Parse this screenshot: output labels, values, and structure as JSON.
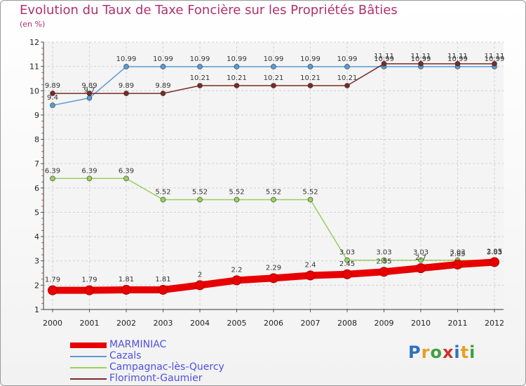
{
  "title": "Evolution du Taux de Taxe Foncière sur les Propriétés Bâties",
  "unit": "(en %)",
  "logo": {
    "text": "Proxiti",
    "colors": [
      "#3070c0",
      "#e8a020",
      "#40a040",
      "#d03030",
      "#3070c0",
      "#e8a020",
      "#40a040"
    ]
  },
  "chart_data": {
    "type": "line",
    "title": "Evolution du Taux de Taxe Foncière sur les Propriétés Bâties",
    "ylabel": "(en %)",
    "xlabel": "",
    "ylim": [
      1,
      12
    ],
    "y_ticks": [
      1,
      2,
      3,
      4,
      5,
      6,
      7,
      8,
      9,
      10,
      11,
      12
    ],
    "categories": [
      "2000",
      "2001",
      "2002",
      "2003",
      "2004",
      "2005",
      "2006",
      "2007",
      "2008",
      "2009",
      "2010",
      "2011",
      "2012"
    ],
    "series": [
      {
        "name": "MARMINIAC",
        "color": "#e80000",
        "values": [
          1.79,
          1.79,
          1.81,
          1.81,
          2,
          2.2,
          2.29,
          2.4,
          2.45,
          2.55,
          2.7,
          2.85,
          2.95
        ],
        "labels": [
          "1.79",
          "1.79",
          "1.81",
          "1.81",
          "2",
          "2.2",
          "2.29",
          "2.4",
          "2.45",
          "2.55",
          "2.7",
          "2.85",
          "2.95"
        ]
      },
      {
        "name": "Cazals",
        "color": "#5a9bd4",
        "values": [
          9.4,
          9.7,
          10.99,
          10.99,
          10.99,
          10.99,
          10.99,
          10.99,
          10.99,
          10.99,
          10.99,
          10.99,
          10.99
        ],
        "labels": [
          "9.4",
          "9.7",
          "10.99",
          "10.99",
          "10.99",
          "10.99",
          "10.99",
          "10.99",
          "10.99",
          "10.99",
          "10.99",
          "10.99",
          "10.99"
        ]
      },
      {
        "name": "Campagnac-lès-Quercy",
        "color": "#99d060",
        "values": [
          6.39,
          6.39,
          6.39,
          5.52,
          5.52,
          5.52,
          5.52,
          5.52,
          3.03,
          3.03,
          3.03,
          3.03,
          3.03
        ],
        "labels": [
          "6.39",
          "6.39",
          "6.39",
          "5.52",
          "5.52",
          "5.52",
          "5.52",
          "5.52",
          "3.03",
          "3.03",
          "3.03",
          "3.03",
          "3.03"
        ]
      },
      {
        "name": "Florimont-Gaumier",
        "color": "#7a2a2a",
        "values": [
          9.89,
          9.89,
          9.89,
          9.89,
          10.21,
          10.21,
          10.21,
          10.21,
          10.21,
          11.11,
          11.11,
          11.11,
          11.11
        ],
        "labels": [
          "9.89",
          "9.89",
          "9.89",
          "9.89",
          "10.21",
          "10.21",
          "10.21",
          "10.21",
          "10.21",
          "11.11",
          "11.11",
          "11.11",
          "11.11"
        ]
      }
    ],
    "legend_position": "bottom-left"
  }
}
